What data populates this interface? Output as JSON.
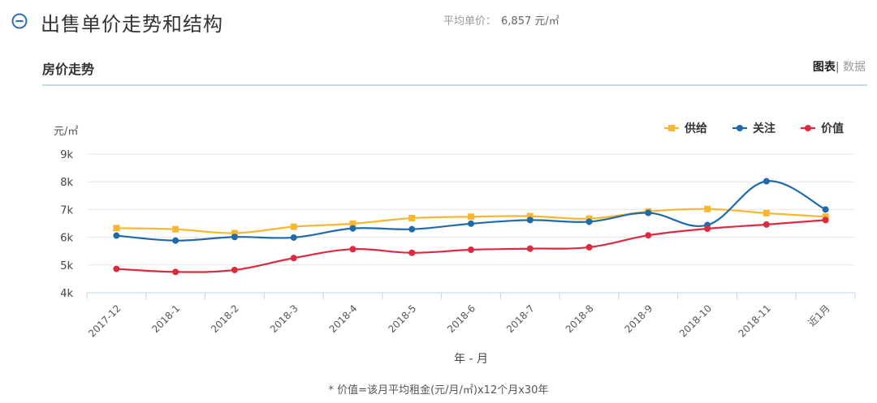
{
  "header": {
    "title": "出售单价走势和结构",
    "avg_label": "平均单价：",
    "avg_value": "6,857 元/㎡"
  },
  "subheader": {
    "title": "房价走势",
    "tab_chart": "图表",
    "separator": "|",
    "tab_data": "数据"
  },
  "colors": {
    "supply": "#f7b733",
    "attention": "#1f6aab",
    "value": "#de2a40",
    "grid": "#e6e6e6",
    "accent": "#2e6fb7"
  },
  "chart_data": {
    "type": "line",
    "yunit": "元/㎡",
    "xlabel": "年 - 月",
    "ylim": [
      4000,
      9000
    ],
    "yticks": [
      {
        "v": 4000,
        "label": "4k"
      },
      {
        "v": 5000,
        "label": "5k"
      },
      {
        "v": 6000,
        "label": "6k"
      },
      {
        "v": 7000,
        "label": "7k"
      },
      {
        "v": 8000,
        "label": "8k"
      },
      {
        "v": 9000,
        "label": "9k"
      }
    ],
    "categories": [
      "2017-12",
      "2018-1",
      "2018-2",
      "2018-3",
      "2018-4",
      "2018-5",
      "2018-6",
      "2018-7",
      "2018-8",
      "2018-9",
      "2018-10",
      "2018-11",
      "近1月"
    ],
    "legend_position": "top-right",
    "grid": true,
    "series": [
      {
        "name": "供给",
        "color_key": "supply",
        "marker": "square",
        "values": [
          6330,
          6290,
          6150,
          6380,
          6490,
          6690,
          6740,
          6760,
          6670,
          6930,
          7020,
          6870,
          6740
        ]
      },
      {
        "name": "关注",
        "color_key": "attention",
        "marker": "circle",
        "values": [
          6060,
          5880,
          6010,
          5990,
          6320,
          6290,
          6490,
          6620,
          6560,
          6880,
          6440,
          8020,
          7000
        ]
      },
      {
        "name": "价值",
        "color_key": "value",
        "marker": "circle",
        "values": [
          4860,
          4750,
          4820,
          5250,
          5570,
          5440,
          5550,
          5590,
          5640,
          6070,
          6310,
          6460,
          6620
        ]
      }
    ]
  },
  "footnote": "* 价值=该月平均租金(元/月/㎡)x12个月x30年"
}
